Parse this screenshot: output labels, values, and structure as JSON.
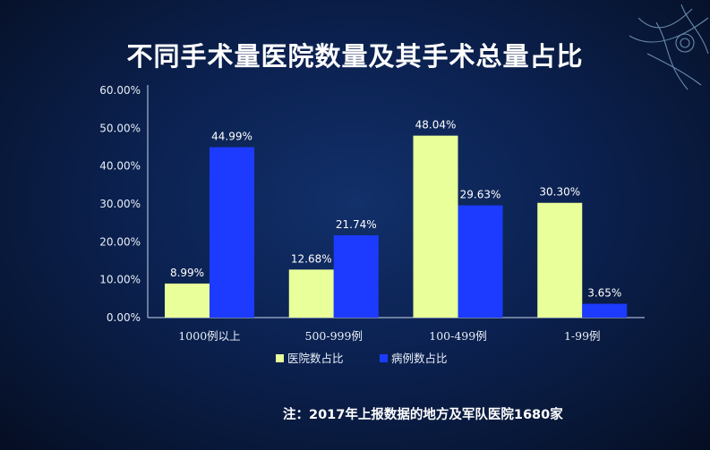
{
  "title": "不同手术量医院数量及其手术总量占比",
  "note": "注：2017年上报数据的地方及军队医院1680家",
  "colors": {
    "series1": "#e9ff9a",
    "series2": "#1c3bff"
  },
  "chart_data": {
    "type": "bar",
    "categories": [
      "1000例以上",
      "500-999例",
      "100-499例",
      "1-99例"
    ],
    "series": [
      {
        "name": "医院数占比",
        "values": [
          8.99,
          12.68,
          48.04,
          30.3
        ],
        "labels": [
          "8.99%",
          "12.68%",
          "48.04%",
          "30.30%"
        ]
      },
      {
        "name": "病例数占比",
        "values": [
          44.99,
          21.74,
          29.63,
          3.65
        ],
        "labels": [
          "44.99%",
          "21.74%",
          "29.63%",
          "3.65%"
        ]
      }
    ],
    "ylim": [
      0,
      60
    ],
    "yticks": [
      "0.00%",
      "10.00%",
      "20.00%",
      "30.00%",
      "40.00%",
      "50.00%",
      "60.00%"
    ],
    "legend": "bottom",
    "grid": false
  }
}
